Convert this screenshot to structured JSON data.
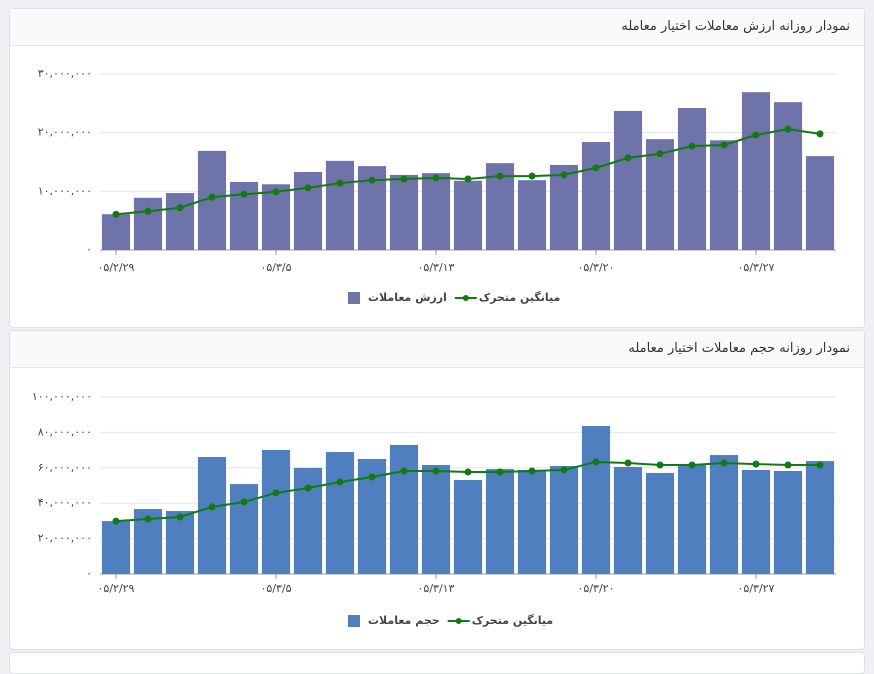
{
  "chart_data": [
    {
      "type": "bar",
      "title": "نمودار روزانه ارزش معاملات اختیار معامله",
      "categories": [
        "۰۵/۲/۲۹",
        null,
        null,
        null,
        null,
        "۰۵/۳/۵",
        null,
        null,
        null,
        null,
        "۰۵/۳/۱۳",
        null,
        null,
        null,
        null,
        "۰۵/۳/۲۰",
        null,
        null,
        null,
        null,
        "۰۵/۳/۲۷",
        null,
        null
      ],
      "series": [
        {
          "name": "ارزش معاملات",
          "type": "bar",
          "color": "#6e74aa",
          "values": [
            6100000,
            8900000,
            9700000,
            16900000,
            11600000,
            11200000,
            13300000,
            15200000,
            14300000,
            12800000,
            13100000,
            11800000,
            14800000,
            11900000,
            14500000,
            18400000,
            23700000,
            18900000,
            24200000,
            18700000,
            26900000,
            25200000,
            16000000
          ]
        },
        {
          "name": "میانگین متحرک",
          "type": "line",
          "color": "#137a13",
          "values": [
            6100000,
            6600000,
            7200000,
            9000000,
            9500000,
            9900000,
            10600000,
            11400000,
            11900000,
            12100000,
            12300000,
            12100000,
            12600000,
            12600000,
            12800000,
            14000000,
            15700000,
            16400000,
            17700000,
            17900000,
            19600000,
            20600000,
            19800000
          ]
        }
      ],
      "ylim": [
        0,
        30000000
      ],
      "yticks": [
        {
          "value": 0,
          "label": "۰"
        },
        {
          "value": 10000000,
          "label": "۱۰,۰۰۰,۰۰۰"
        },
        {
          "value": 20000000,
          "label": "۲۰,۰۰۰,۰۰۰"
        },
        {
          "value": 30000000,
          "label": "۳۰,۰۰۰,۰۰۰"
        }
      ],
      "grid": true
    },
    {
      "type": "bar",
      "title": "نمودار روزانه حجم معاملات اختیار معامله",
      "categories": [
        "۰۵/۲/۲۹",
        null,
        null,
        null,
        null,
        "۰۵/۳/۵",
        null,
        null,
        null,
        null,
        "۰۵/۳/۱۳",
        null,
        null,
        null,
        null,
        "۰۵/۳/۲۰",
        null,
        null,
        null,
        null,
        "۰۵/۳/۲۷",
        null,
        null
      ],
      "series": [
        {
          "name": "حجم معاملات",
          "type": "bar",
          "color": "#4f7fbe",
          "values": [
            29900000,
            36700000,
            35600000,
            66100000,
            50800000,
            70100000,
            59900000,
            68900000,
            65000000,
            72900000,
            61600000,
            53100000,
            59300000,
            58800000,
            61000000,
            83600000,
            60500000,
            57100000,
            62100000,
            67200000,
            58800000,
            58200000,
            63800000
          ]
        },
        {
          "name": "میانگین متحرک",
          "type": "line",
          "color": "#137a13",
          "values": [
            29900000,
            31100000,
            32200000,
            37900000,
            40700000,
            45800000,
            48600000,
            52000000,
            54800000,
            58200000,
            58200000,
            57600000,
            57600000,
            58200000,
            58800000,
            63300000,
            62700000,
            61600000,
            61600000,
            62700000,
            62100000,
            61600000,
            61600000
          ]
        }
      ],
      "ylim": [
        0,
        100000000
      ],
      "yticks": [
        {
          "value": 0,
          "label": "۰"
        },
        {
          "value": 20000000,
          "label": "۲۰,۰۰۰,۰۰۰"
        },
        {
          "value": 40000000,
          "label": "۴۰,۰۰۰,۰۰۰"
        },
        {
          "value": 60000000,
          "label": "۶۰,۰۰۰,۰۰۰"
        },
        {
          "value": 80000000,
          "label": "۸۰,۰۰۰,۰۰۰"
        },
        {
          "value": 100000000,
          "label": "۱۰۰,۰۰۰,۰۰۰"
        }
      ],
      "grid": true
    }
  ]
}
